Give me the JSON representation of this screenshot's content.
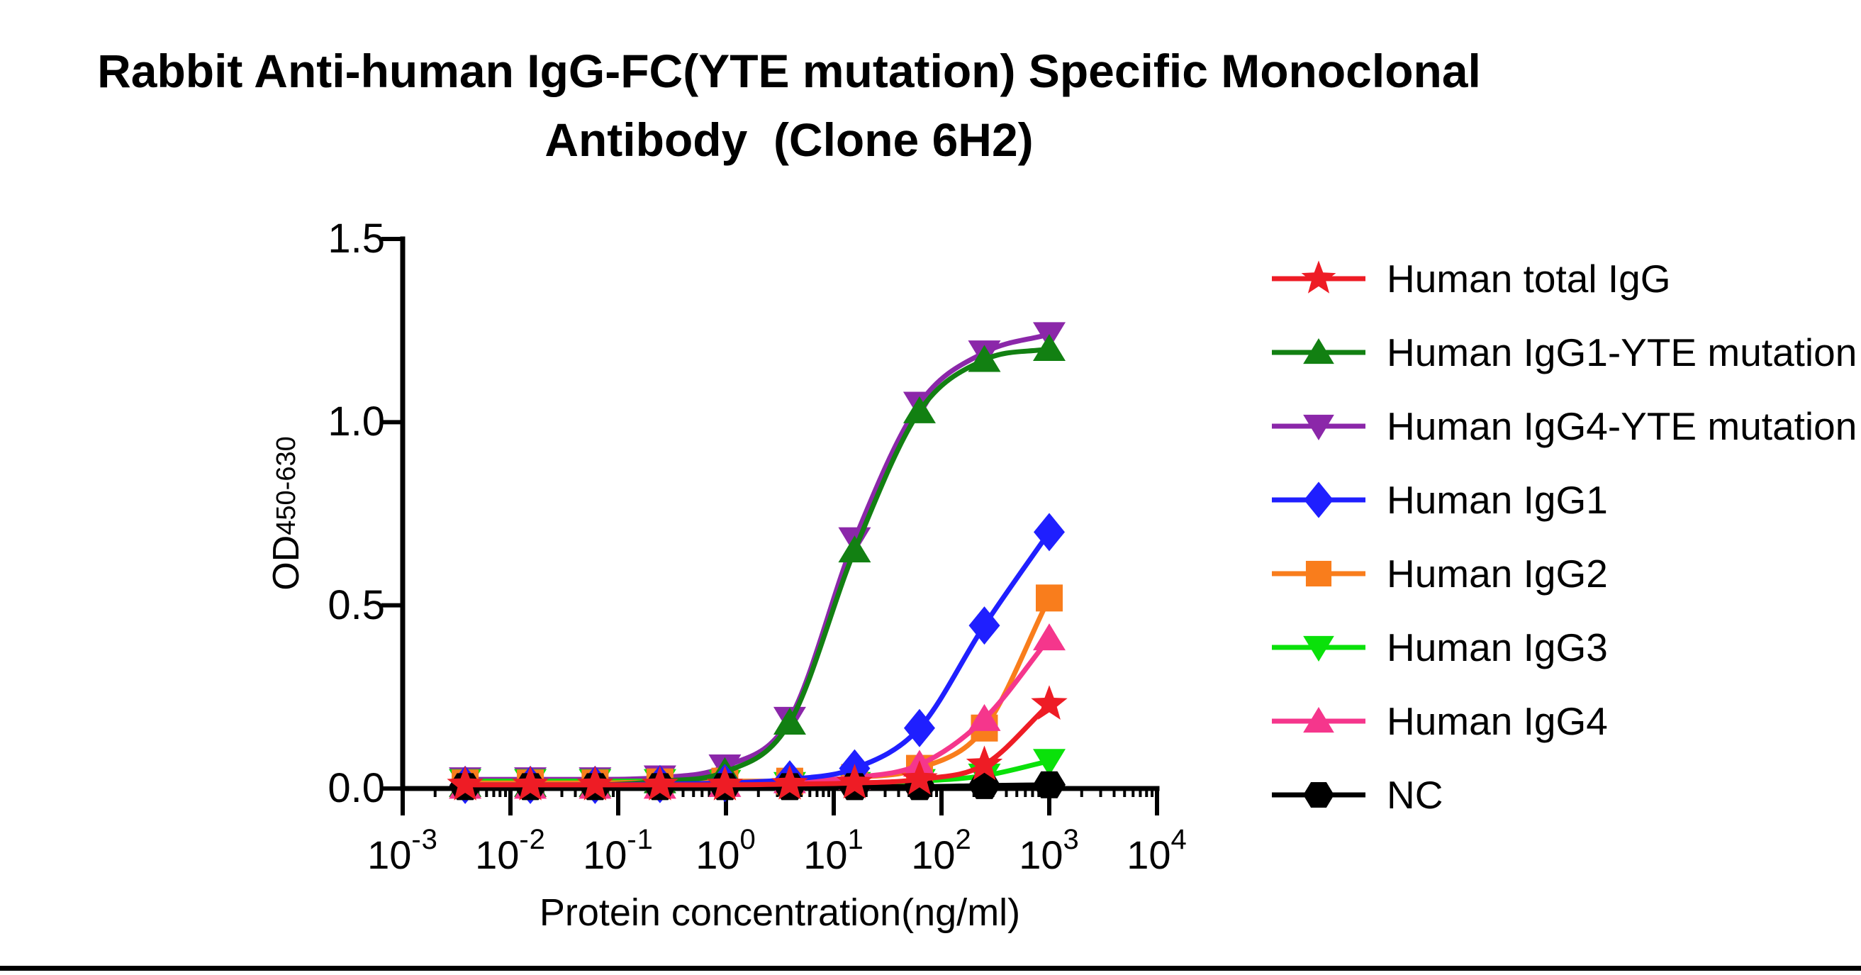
{
  "title": {
    "line1": "Rabbit Anti-human IgG-FC(YTE mutation) Specific Monoclonal",
    "line2": "Antibody  (Clone 6H2)"
  },
  "axes": {
    "x": {
      "label": "Protein concentration(ng/ml)",
      "base": "10",
      "tick_exponents": [
        "-3",
        "-2",
        "-1",
        "0",
        "1",
        "2",
        "3",
        "4"
      ],
      "scale": "log"
    },
    "y": {
      "label_base": "OD",
      "label_sub": "450-630",
      "ticks": [
        "0.0",
        "0.5",
        "1.0",
        "1.5"
      ],
      "tick_values": [
        0,
        0.5,
        1.0,
        1.5
      ]
    }
  },
  "chart_data": {
    "type": "line",
    "title": "Rabbit Anti-human IgG-FC(YTE mutation) Specific Monoclonal Antibody (Clone 6H2)",
    "xlabel": "Protein concentration(ng/ml)",
    "ylabel": "OD450-630",
    "xscale": "log",
    "xlim": [
      0.001,
      10000
    ],
    "ylim": [
      0,
      1.5
    ],
    "legend_position": "right",
    "grid": false,
    "x": [
      0.0038,
      0.0153,
      0.061,
      0.244,
      0.977,
      3.906,
      15.625,
      62.5,
      250,
      1000
    ],
    "series": [
      {
        "name": "Human total IgG",
        "color": "#ee1c25",
        "marker": "star",
        "values": [
          0.01,
          0.01,
          0.01,
          0.01,
          0.01,
          0.012,
          0.015,
          0.025,
          0.065,
          0.23
        ]
      },
      {
        "name": "Human IgG1-YTE mutation",
        "color": "#128012",
        "marker": "triangle-up",
        "values": [
          0.01,
          0.01,
          0.01,
          0.02,
          0.045,
          0.18,
          0.65,
          1.03,
          1.17,
          1.2
        ]
      },
      {
        "name": "Human IgG4-YTE mutation",
        "color": "#8b27a9",
        "marker": "triangle-down",
        "values": [
          0.025,
          0.025,
          0.025,
          0.03,
          0.06,
          0.19,
          0.68,
          1.05,
          1.19,
          1.24
        ]
      },
      {
        "name": "Human IgG1",
        "color": "#1f1fff",
        "marker": "diamond",
        "values": [
          0.01,
          0.01,
          0.01,
          0.012,
          0.015,
          0.025,
          0.055,
          0.165,
          0.445,
          0.7
        ]
      },
      {
        "name": "Human IgG2",
        "color": "#f97d1c",
        "marker": "square",
        "values": [
          0.015,
          0.015,
          0.015,
          0.018,
          0.02,
          0.02,
          0.03,
          0.055,
          0.165,
          0.52
        ]
      },
      {
        "name": "Human IgG3",
        "color": "#0ae10a",
        "marker": "triangle-down",
        "values": [
          0.02,
          0.02,
          0.02,
          0.02,
          0.018,
          0.012,
          0.012,
          0.02,
          0.035,
          0.075
        ]
      },
      {
        "name": "Human IgG4",
        "color": "#f5368c",
        "marker": "triangle-up",
        "values": [
          0.005,
          0.005,
          0.005,
          0.005,
          0.01,
          0.02,
          0.03,
          0.065,
          0.19,
          0.41
        ]
      },
      {
        "name": "NC",
        "color": "#000000",
        "marker": "hexagon",
        "values": [
          0.005,
          0.005,
          0.005,
          0.005,
          0.005,
          0.005,
          0.005,
          0.005,
          0.008,
          0.01
        ]
      }
    ],
    "draw_order": [
      2,
      5,
      4,
      1,
      6,
      3,
      7,
      0
    ]
  }
}
